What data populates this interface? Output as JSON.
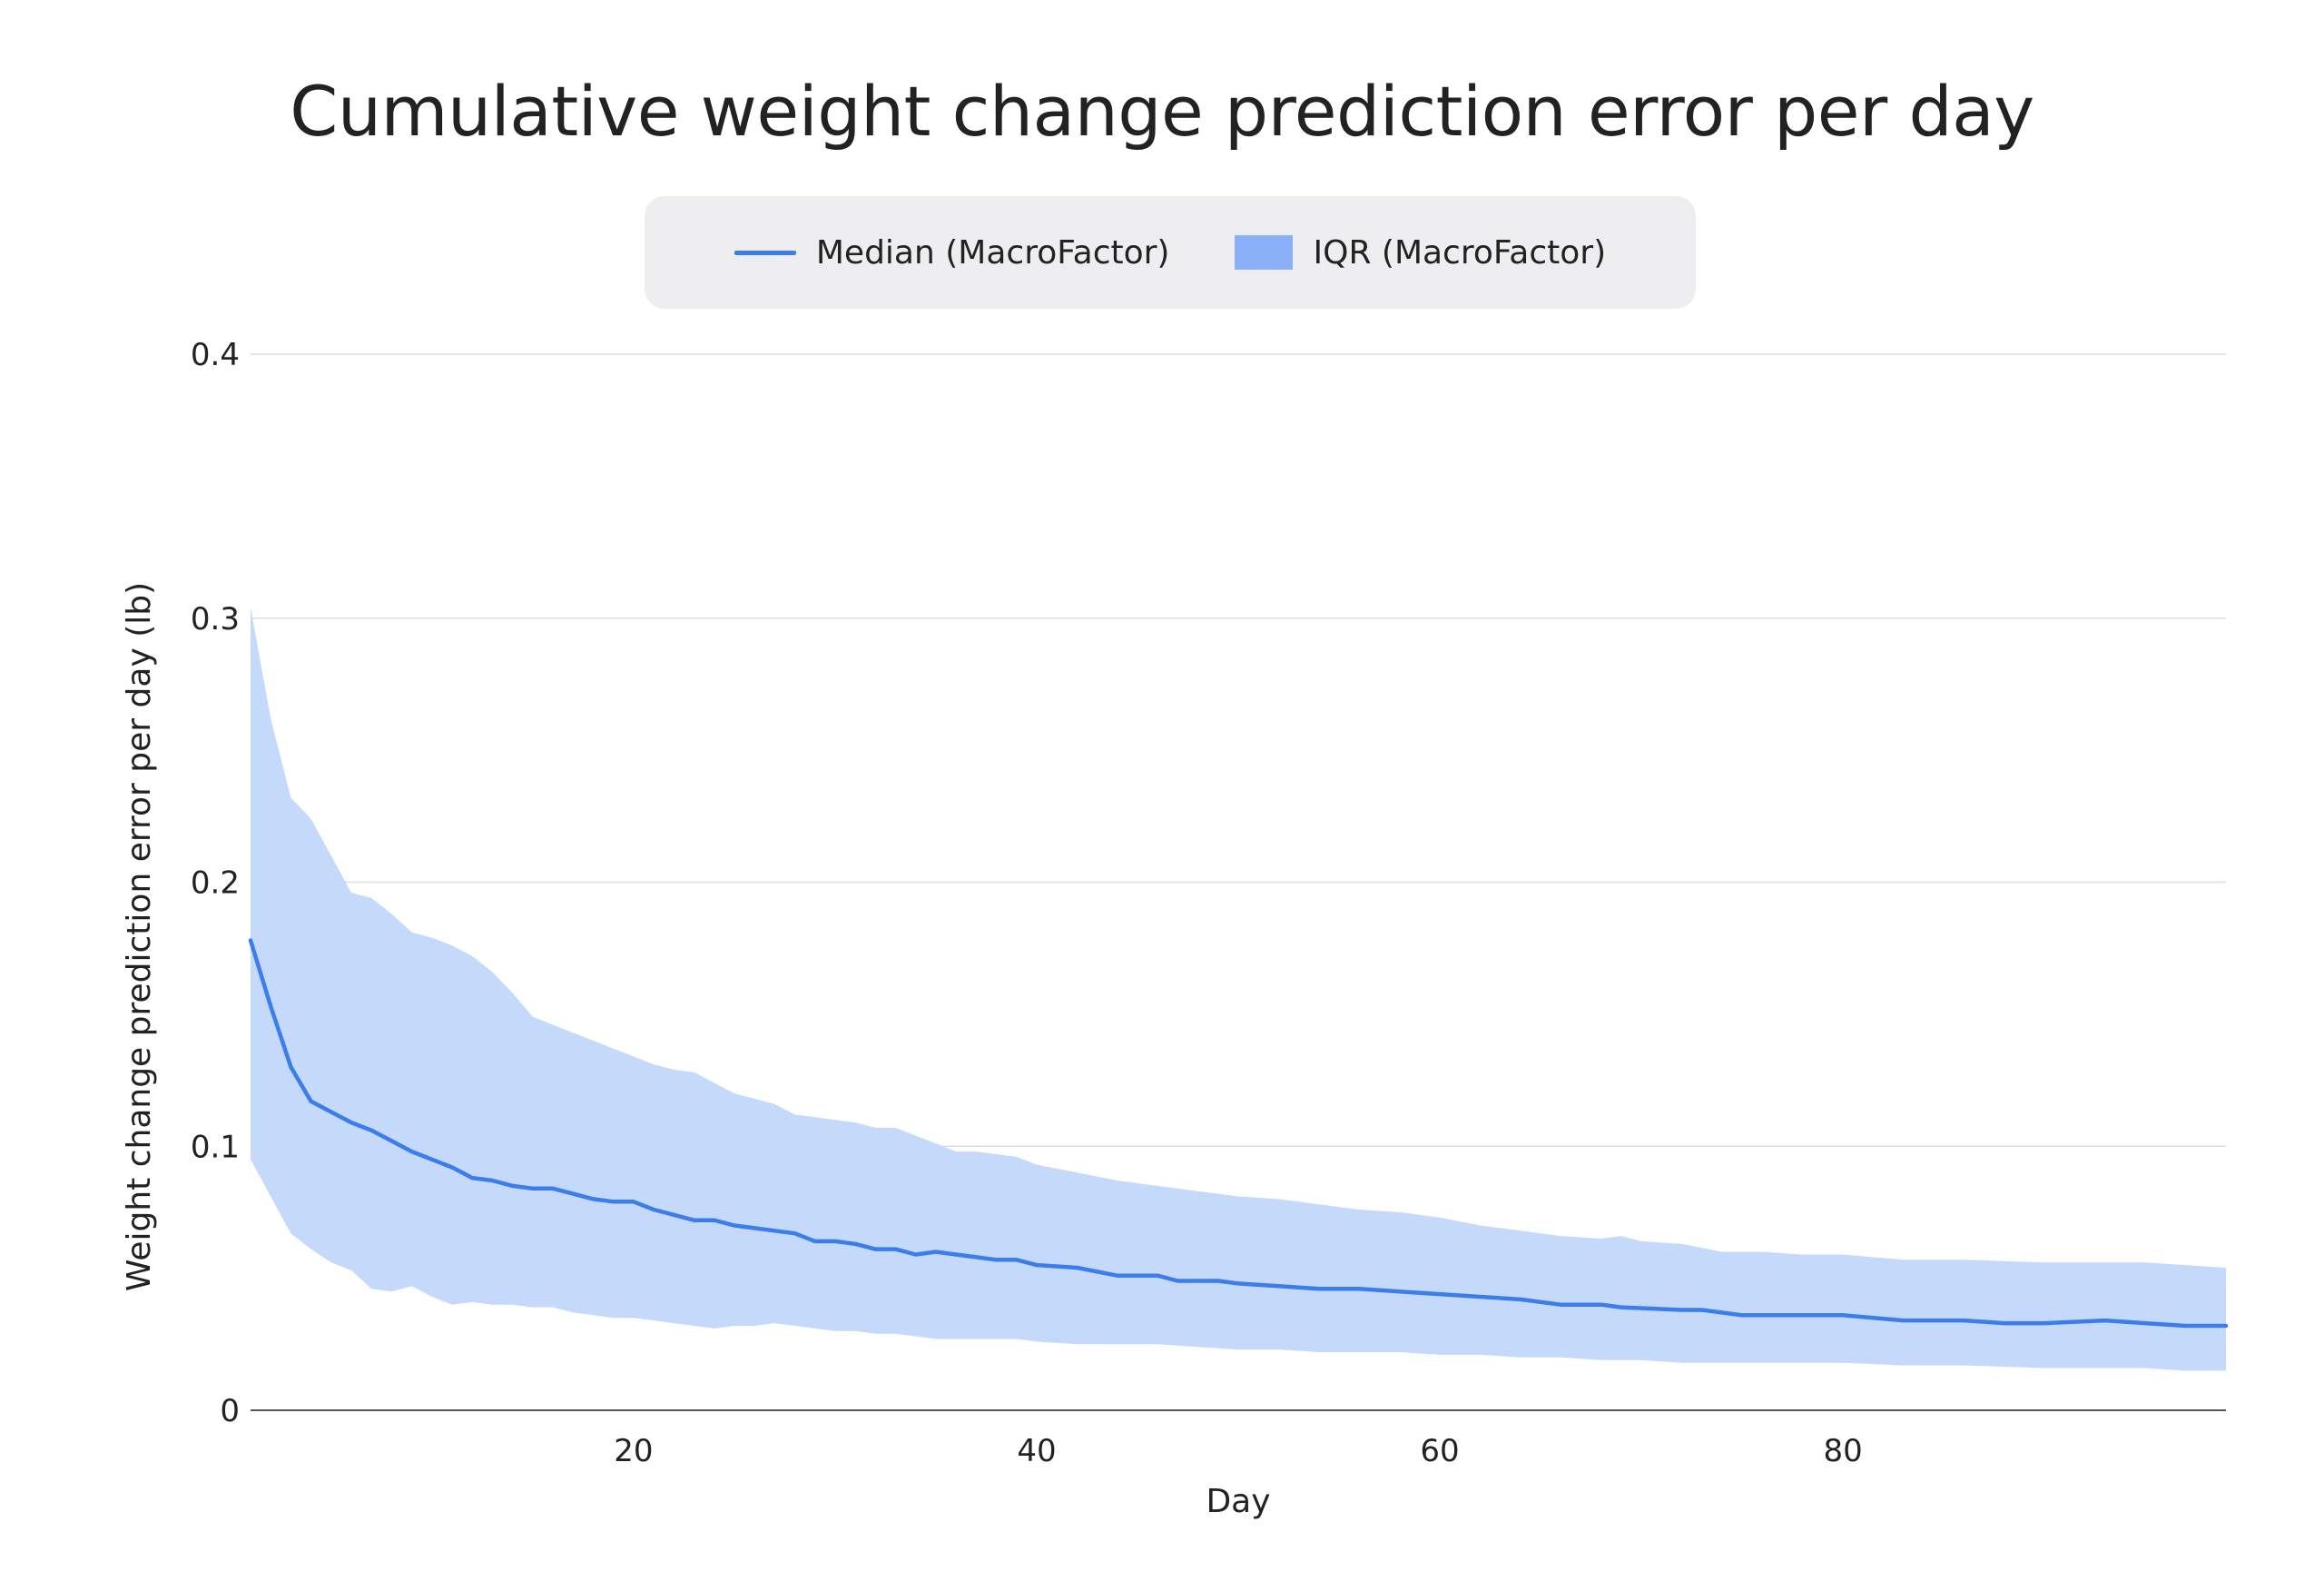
{
  "chart_data": {
    "type": "area",
    "title": "Cumulative weight change prediction error per day",
    "xlabel": "Day",
    "ylabel": "Weight change prediction error per day (lb)",
    "xlim": [
      1,
      99
    ],
    "ylim": [
      0,
      0.4
    ],
    "x_ticks": [
      20,
      40,
      60,
      80
    ],
    "y_ticks": [
      0,
      0.1,
      0.2,
      0.3,
      0.4
    ],
    "y_tick_labels": [
      "0",
      "0.1",
      "0.2",
      "0.3",
      "0.4"
    ],
    "grid": "horizontal",
    "legend_position": "top-center",
    "colors": {
      "median_line": "#3b7ded",
      "iqr_fill": "#c5d9fb",
      "legend_iqr_swatch": "#8ab1f8",
      "gridline": "#dddddd",
      "axis": "#555555"
    },
    "legend": [
      {
        "label": "Median (MacroFactor)",
        "kind": "line"
      },
      {
        "label": "IQR (MacroFactor)",
        "kind": "area"
      }
    ],
    "series": [
      {
        "name": "Median (MacroFactor)",
        "points": [
          [
            1,
            0.178
          ],
          [
            2,
            0.153
          ],
          [
            3,
            0.13
          ],
          [
            4,
            0.117
          ],
          [
            5,
            0.113
          ],
          [
            6,
            0.109
          ],
          [
            7,
            0.106
          ],
          [
            8,
            0.102
          ],
          [
            9,
            0.098
          ],
          [
            10,
            0.095
          ],
          [
            11,
            0.092
          ],
          [
            12,
            0.088
          ],
          [
            13,
            0.087
          ],
          [
            14,
            0.085
          ],
          [
            15,
            0.084
          ],
          [
            16,
            0.084
          ],
          [
            17,
            0.082
          ],
          [
            18,
            0.08
          ],
          [
            19,
            0.079
          ],
          [
            20,
            0.079
          ],
          [
            21,
            0.076
          ],
          [
            22,
            0.074
          ],
          [
            23,
            0.072
          ],
          [
            24,
            0.072
          ],
          [
            25,
            0.07
          ],
          [
            26,
            0.069
          ],
          [
            27,
            0.068
          ],
          [
            28,
            0.067
          ],
          [
            29,
            0.064
          ],
          [
            30,
            0.064
          ],
          [
            31,
            0.063
          ],
          [
            32,
            0.061
          ],
          [
            33,
            0.061
          ],
          [
            34,
            0.059
          ],
          [
            35,
            0.06
          ],
          [
            36,
            0.059
          ],
          [
            37,
            0.058
          ],
          [
            38,
            0.057
          ],
          [
            39,
            0.057
          ],
          [
            40,
            0.055
          ],
          [
            42,
            0.054
          ],
          [
            44,
            0.051
          ],
          [
            46,
            0.051
          ],
          [
            47,
            0.049
          ],
          [
            49,
            0.049
          ],
          [
            50,
            0.048
          ],
          [
            52,
            0.047
          ],
          [
            54,
            0.046
          ],
          [
            56,
            0.046
          ],
          [
            58,
            0.045
          ],
          [
            60,
            0.044
          ],
          [
            62,
            0.043
          ],
          [
            64,
            0.042
          ],
          [
            65,
            0.041
          ],
          [
            66,
            0.04
          ],
          [
            68,
            0.04
          ],
          [
            69,
            0.039
          ],
          [
            72,
            0.038
          ],
          [
            73,
            0.038
          ],
          [
            75,
            0.036
          ],
          [
            78,
            0.036
          ],
          [
            80,
            0.036
          ],
          [
            83,
            0.034
          ],
          [
            86,
            0.034
          ],
          [
            88,
            0.033
          ],
          [
            90,
            0.033
          ],
          [
            93,
            0.034
          ],
          [
            95,
            0.033
          ],
          [
            97,
            0.032
          ],
          [
            99,
            0.032
          ]
        ]
      },
      {
        "name": "IQR (MacroFactor)",
        "upper": [
          [
            1,
            0.304
          ],
          [
            2,
            0.262
          ],
          [
            3,
            0.232
          ],
          [
            4,
            0.224
          ],
          [
            5,
            0.21
          ],
          [
            6,
            0.196
          ],
          [
            7,
            0.194
          ],
          [
            8,
            0.188
          ],
          [
            9,
            0.181
          ],
          [
            10,
            0.179
          ],
          [
            11,
            0.176
          ],
          [
            12,
            0.172
          ],
          [
            13,
            0.166
          ],
          [
            14,
            0.158
          ],
          [
            15,
            0.149
          ],
          [
            16,
            0.146
          ],
          [
            17,
            0.143
          ],
          [
            18,
            0.14
          ],
          [
            19,
            0.137
          ],
          [
            20,
            0.134
          ],
          [
            21,
            0.131
          ],
          [
            22,
            0.129
          ],
          [
            23,
            0.128
          ],
          [
            24,
            0.124
          ],
          [
            25,
            0.12
          ],
          [
            26,
            0.118
          ],
          [
            27,
            0.116
          ],
          [
            28,
            0.112
          ],
          [
            29,
            0.111
          ],
          [
            30,
            0.11
          ],
          [
            31,
            0.109
          ],
          [
            32,
            0.107
          ],
          [
            33,
            0.107
          ],
          [
            34,
            0.104
          ],
          [
            35,
            0.101
          ],
          [
            36,
            0.098
          ],
          [
            37,
            0.098
          ],
          [
            38,
            0.097
          ],
          [
            39,
            0.096
          ],
          [
            40,
            0.093
          ],
          [
            42,
            0.09
          ],
          [
            44,
            0.087
          ],
          [
            46,
            0.085
          ],
          [
            48,
            0.083
          ],
          [
            50,
            0.081
          ],
          [
            52,
            0.08
          ],
          [
            54,
            0.078
          ],
          [
            56,
            0.076
          ],
          [
            58,
            0.075
          ],
          [
            60,
            0.073
          ],
          [
            62,
            0.07
          ],
          [
            64,
            0.068
          ],
          [
            66,
            0.066
          ],
          [
            68,
            0.065
          ],
          [
            69,
            0.066
          ],
          [
            70,
            0.064
          ],
          [
            72,
            0.063
          ],
          [
            74,
            0.06
          ],
          [
            76,
            0.06
          ],
          [
            78,
            0.059
          ],
          [
            80,
            0.059
          ],
          [
            83,
            0.057
          ],
          [
            86,
            0.057
          ],
          [
            90,
            0.056
          ],
          [
            93,
            0.056
          ],
          [
            95,
            0.056
          ],
          [
            97,
            0.055
          ],
          [
            99,
            0.054
          ]
        ],
        "lower": [
          [
            1,
            0.095
          ],
          [
            2,
            0.081
          ],
          [
            3,
            0.067
          ],
          [
            4,
            0.061
          ],
          [
            5,
            0.056
          ],
          [
            6,
            0.053
          ],
          [
            7,
            0.046
          ],
          [
            8,
            0.045
          ],
          [
            9,
            0.047
          ],
          [
            10,
            0.043
          ],
          [
            11,
            0.04
          ],
          [
            12,
            0.041
          ],
          [
            13,
            0.04
          ],
          [
            14,
            0.04
          ],
          [
            15,
            0.039
          ],
          [
            16,
            0.039
          ],
          [
            17,
            0.037
          ],
          [
            18,
            0.036
          ],
          [
            19,
            0.035
          ],
          [
            20,
            0.035
          ],
          [
            21,
            0.034
          ],
          [
            22,
            0.033
          ],
          [
            23,
            0.032
          ],
          [
            24,
            0.031
          ],
          [
            25,
            0.032
          ],
          [
            26,
            0.032
          ],
          [
            27,
            0.033
          ],
          [
            28,
            0.032
          ],
          [
            29,
            0.031
          ],
          [
            30,
            0.03
          ],
          [
            31,
            0.03
          ],
          [
            32,
            0.029
          ],
          [
            33,
            0.029
          ],
          [
            34,
            0.028
          ],
          [
            35,
            0.027
          ],
          [
            36,
            0.027
          ],
          [
            37,
            0.027
          ],
          [
            38,
            0.027
          ],
          [
            39,
            0.027
          ],
          [
            40,
            0.026
          ],
          [
            42,
            0.025
          ],
          [
            44,
            0.025
          ],
          [
            46,
            0.025
          ],
          [
            48,
            0.024
          ],
          [
            50,
            0.023
          ],
          [
            52,
            0.023
          ],
          [
            54,
            0.022
          ],
          [
            56,
            0.022
          ],
          [
            58,
            0.022
          ],
          [
            60,
            0.021
          ],
          [
            62,
            0.021
          ],
          [
            64,
            0.02
          ],
          [
            66,
            0.02
          ],
          [
            68,
            0.019
          ],
          [
            70,
            0.019
          ],
          [
            72,
            0.018
          ],
          [
            74,
            0.018
          ],
          [
            76,
            0.018
          ],
          [
            78,
            0.018
          ],
          [
            80,
            0.018
          ],
          [
            83,
            0.017
          ],
          [
            86,
            0.017
          ],
          [
            90,
            0.016
          ],
          [
            93,
            0.016
          ],
          [
            95,
            0.016
          ],
          [
            97,
            0.015
          ],
          [
            99,
            0.015
          ]
        ]
      }
    ]
  }
}
